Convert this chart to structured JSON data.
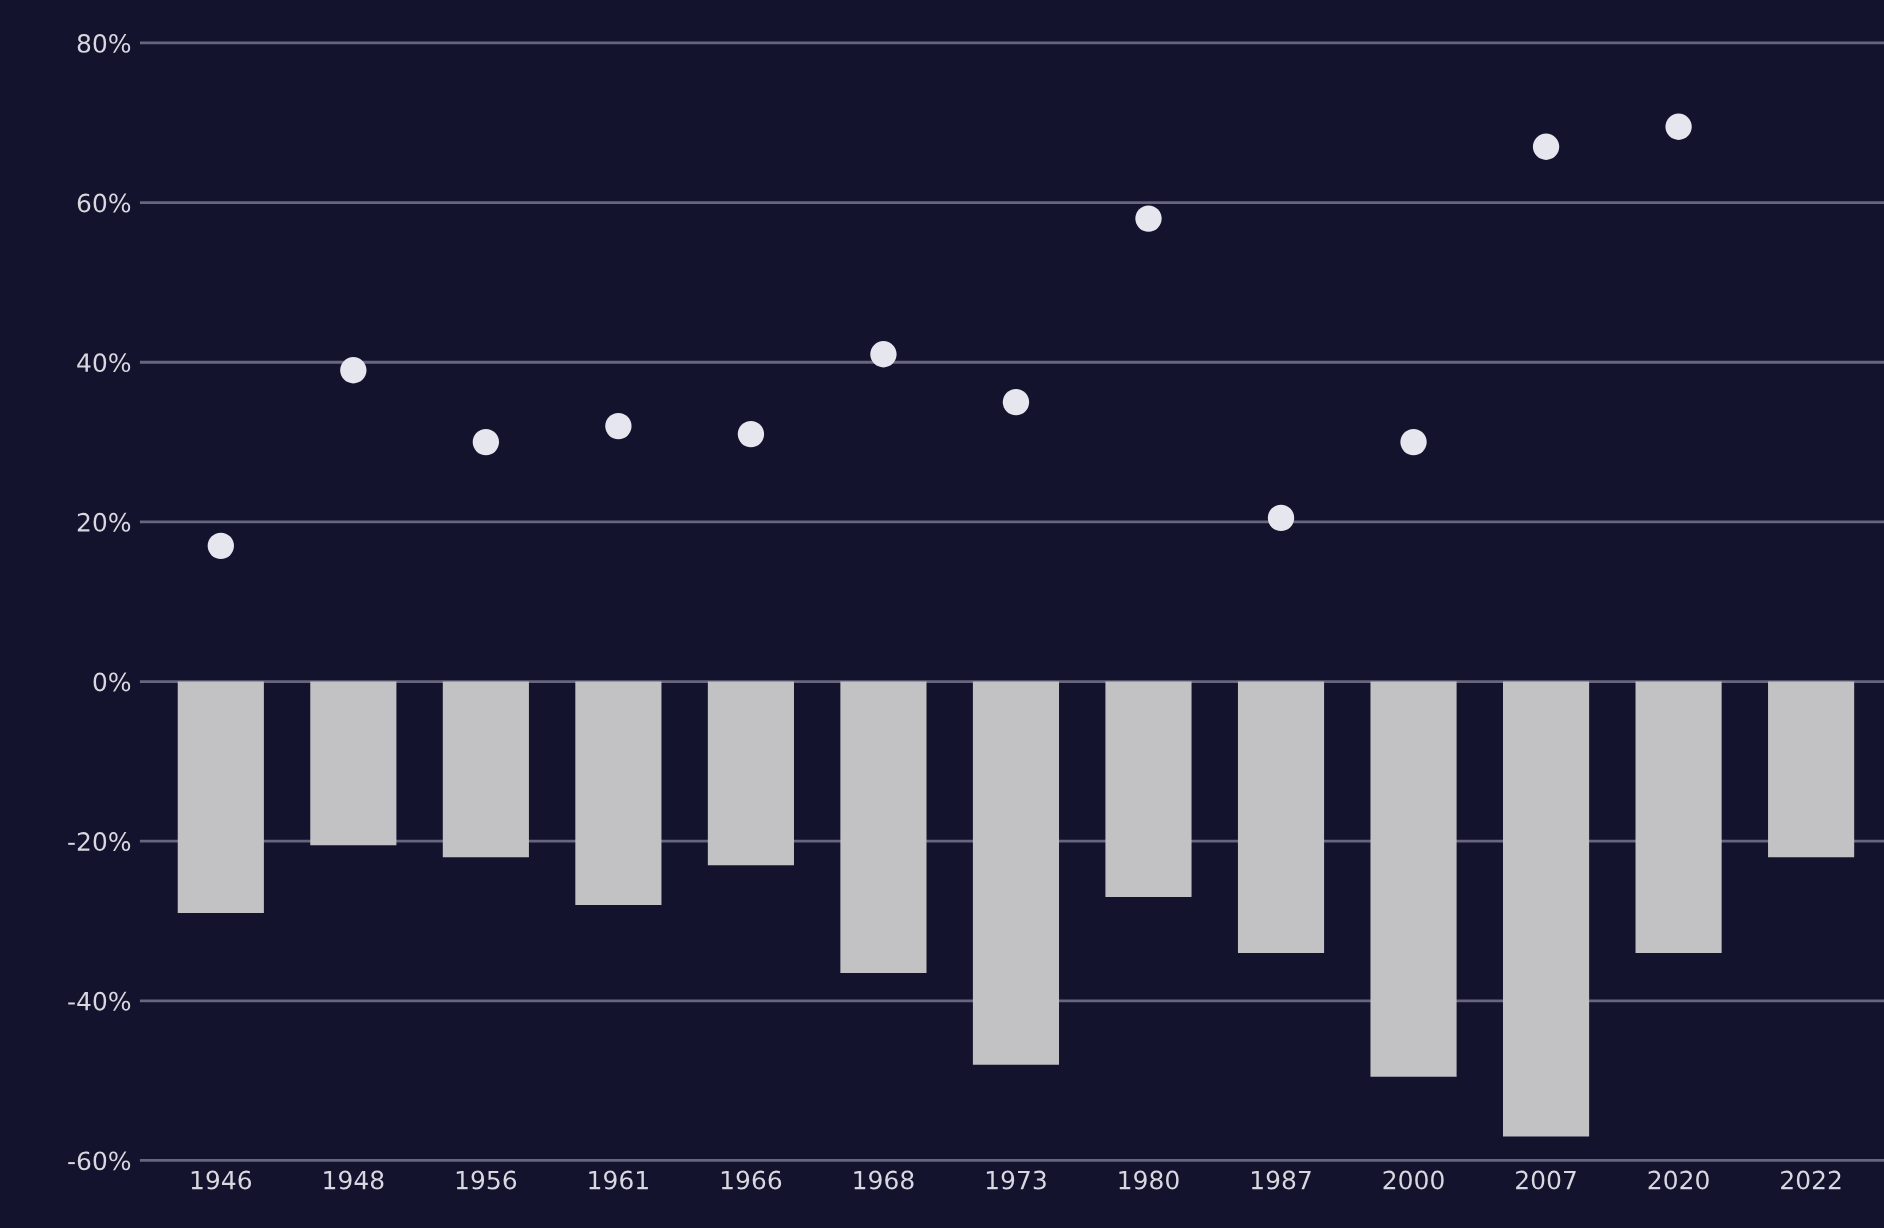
{
  "chart_data": {
    "type": "bar",
    "categories": [
      "1946",
      "1948",
      "1956",
      "1961",
      "1966",
      "1968",
      "1973",
      "1980",
      "1987",
      "2000",
      "2007",
      "2020",
      "2022"
    ],
    "series": [
      {
        "color": "#c2c2c4",
        "values": [
          -29,
          -20.5,
          -22,
          -28,
          -23,
          -36.5,
          -48,
          -27,
          -34,
          -49.5,
          -57,
          -34,
          -22
        ]
      },
      {
        "type": "scatter",
        "color": "#e6e6ee",
        "values": [
          17,
          39,
          30,
          32,
          31,
          41,
          35,
          58,
          20.5,
          30,
          67,
          69.5,
          null
        ]
      }
    ],
    "ylim": [
      -60,
      80
    ],
    "yticks": [
      {
        "value": 80,
        "label": "80%"
      },
      {
        "value": 60,
        "label": "60%"
      },
      {
        "value": 40,
        "label": "40%"
      },
      {
        "value": 20,
        "label": "20%"
      },
      {
        "value": 0,
        "label": "0%"
      },
      {
        "value": -20,
        "label": "-20%"
      },
      {
        "value": -40,
        "label": "-40%"
      },
      {
        "value": -60,
        "label": "-60%"
      }
    ],
    "grid": "y",
    "marker": "circle"
  }
}
